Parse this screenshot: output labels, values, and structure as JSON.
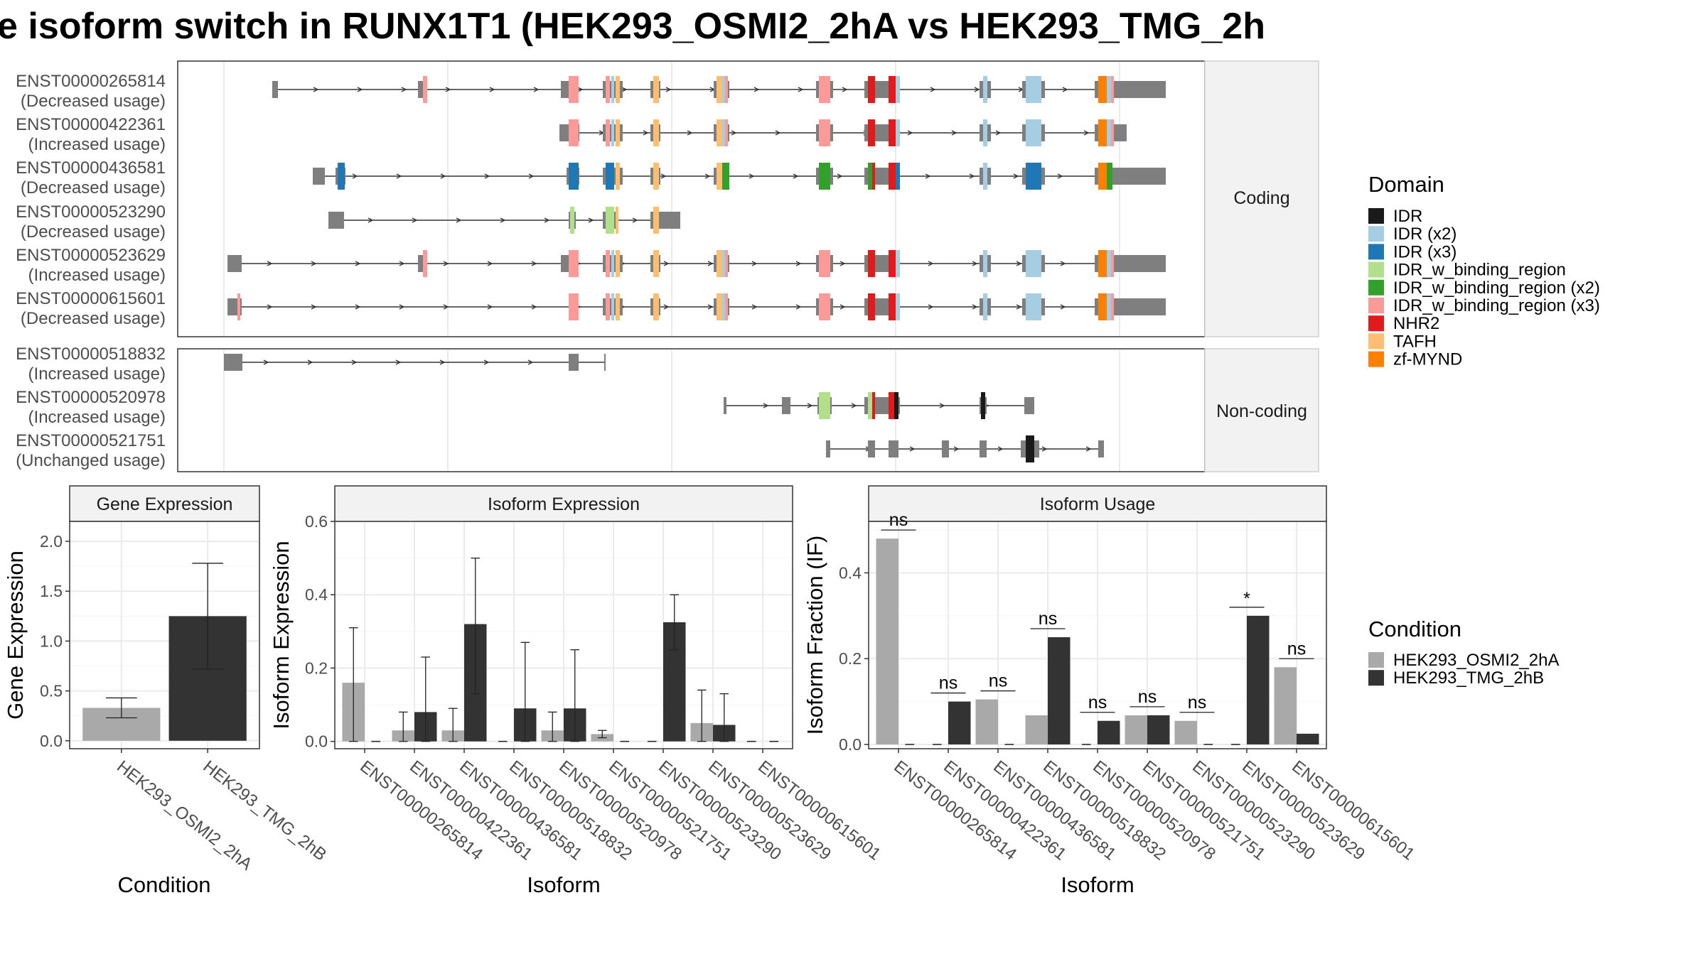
{
  "title": "e isoform switch in RUNX1T1 (HEK293_OSMI2_2hA vs HEK293_TMG_2h",
  "colors": {
    "IDR": "#1a1a1a",
    "IDR (x2)": "#a6cee3",
    "IDR (x3)": "#1f78b4",
    "IDR_w_binding_region": "#b2df8a",
    "IDR_w_binding_region (x2)": "#33a02c",
    "IDR_w_binding_region (x3)": "#fb9a99",
    "NHR2": "#e31a1c",
    "TAFH": "#fdbf6f",
    "zf-MYND": "#ff7f00",
    "exon": "#7f7f7f",
    "cond_a": "#a9a9a9",
    "cond_b": "#333333"
  },
  "structure": {
    "facets": [
      "Coding",
      "Non-coding"
    ],
    "coding": [
      {
        "id": "ENST00000265814",
        "usage": "(Decreased usage)"
      },
      {
        "id": "ENST00000422361",
        "usage": "(Increased usage)"
      },
      {
        "id": "ENST00000436581",
        "usage": "(Decreased usage)"
      },
      {
        "id": "ENST00000523290",
        "usage": "(Decreased usage)"
      },
      {
        "id": "ENST00000523629",
        "usage": "(Increased usage)"
      },
      {
        "id": "ENST00000615601",
        "usage": "(Decreased usage)"
      }
    ],
    "noncoding": [
      {
        "id": "ENST00000518832",
        "usage": "(Increased usage)"
      },
      {
        "id": "ENST00000520978",
        "usage": "(Increased usage)"
      },
      {
        "id": "ENST00000521751",
        "usage": "(Unchanged usage)"
      }
    ]
  },
  "legend_domain": {
    "title": "Domain",
    "items": [
      "IDR",
      "IDR (x2)",
      "IDR (x3)",
      "IDR_w_binding_region",
      "IDR_w_binding_region (x2)",
      "IDR_w_binding_region (x3)",
      "NHR2",
      "TAFH",
      "zf-MYND"
    ]
  },
  "legend_condition": {
    "title": "Condition",
    "items": [
      "HEK293_OSMI2_2hA",
      "HEK293_TMG_2hB"
    ]
  },
  "chart_data": [
    {
      "type": "bar",
      "title": "Gene Expression",
      "xlabel": "Condition",
      "ylabel": "Gene Expression",
      "categories": [
        "HEK293_OSMI2_2hA",
        "HEK293_TMG_2hB"
      ],
      "values": [
        0.33,
        1.25
      ],
      "err_low": [
        0.23,
        0.72
      ],
      "err_high": [
        0.43,
        1.78
      ],
      "ylim": [
        -0.08,
        2.2
      ],
      "yticks": [
        "0.0",
        "0.5",
        "1.0",
        "1.5",
        "2.0"
      ]
    },
    {
      "type": "bar",
      "title": "Isoform Expression",
      "xlabel": "Isoform",
      "ylabel": "Isoform Expression",
      "categories": [
        "ENST00000265814",
        "ENST00000422361",
        "ENST00000436581",
        "ENST00000518832",
        "ENST00000520978",
        "ENST00000521751",
        "ENST00000523290",
        "ENST00000523629",
        "ENST00000615601"
      ],
      "series": [
        {
          "name": "HEK293_OSMI2_2hA",
          "values": [
            0.16,
            0.03,
            0.03,
            0.0,
            0.03,
            0.02,
            0.0,
            0.05,
            0.0
          ],
          "err_low": [
            0.0,
            0.0,
            0.0,
            0.0,
            0.0,
            0.01,
            0.0,
            0.0,
            0.0
          ],
          "err_high": [
            0.31,
            0.08,
            0.09,
            0.0,
            0.08,
            0.03,
            0.0,
            0.14,
            0.0
          ]
        },
        {
          "name": "HEK293_TMG_2hB",
          "values": [
            0.0,
            0.08,
            0.32,
            0.09,
            0.09,
            0.0,
            0.325,
            0.045,
            0.0
          ],
          "err_low": [
            0.0,
            0.0,
            0.13,
            0.0,
            0.0,
            0.0,
            0.25,
            0.0,
            0.0
          ],
          "err_high": [
            0.0,
            0.23,
            0.5,
            0.27,
            0.25,
            0.0,
            0.4,
            0.13,
            0.0
          ]
        }
      ],
      "ylim": [
        -0.02,
        0.6
      ],
      "yticks": [
        "0.0",
        "0.2",
        "0.4",
        "0.6"
      ]
    },
    {
      "type": "bar",
      "title": "Isoform Usage",
      "xlabel": "Isoform",
      "ylabel": "Isoform Fraction (IF)",
      "categories": [
        "ENST00000265814",
        "ENST00000422361",
        "ENST00000436581",
        "ENST00000518832",
        "ENST00000520978",
        "ENST00000521751",
        "ENST00000523290",
        "ENST00000523629",
        "ENST00000615601"
      ],
      "series": [
        {
          "name": "HEK293_OSMI2_2hA",
          "values": [
            0.48,
            0.0,
            0.105,
            0.068,
            0.0,
            0.068,
            0.055,
            0.0,
            0.18
          ]
        },
        {
          "name": "HEK293_TMG_2hB",
          "values": [
            0.0,
            0.1,
            0.0,
            0.25,
            0.055,
            0.068,
            0.0,
            0.3,
            0.025
          ]
        }
      ],
      "significance": [
        "ns",
        "ns",
        "ns",
        "ns",
        "ns",
        "ns",
        "ns",
        "*",
        "ns"
      ],
      "ylim": [
        -0.01,
        0.52
      ],
      "yticks": [
        "0.0",
        "0.2",
        "0.4"
      ]
    }
  ]
}
